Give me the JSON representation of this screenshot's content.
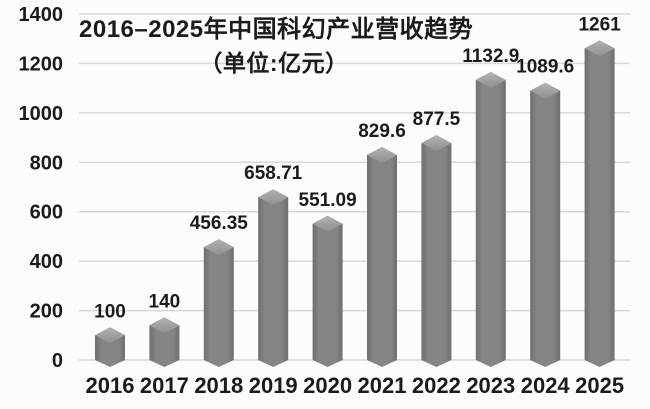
{
  "chart_data": {
    "type": "bar",
    "variant": "3d-box",
    "title": "2016–2025年中国科幻产业营收趋势",
    "subtitle": "（单位:亿元）",
    "categories": [
      "2016",
      "2017",
      "2018",
      "2019",
      "2020",
      "2021",
      "2022",
      "2023",
      "2024",
      "2025"
    ],
    "values": [
      100,
      140,
      456.35,
      658.71,
      551.09,
      829.6,
      877.5,
      1132.9,
      1089.6,
      1261
    ],
    "value_labels": [
      "100",
      "140",
      "456.35",
      "658.71",
      "551.09",
      "829.6",
      "877.5",
      "1132.9",
      "1089.6",
      "1261"
    ],
    "xlabel": "",
    "ylabel": "",
    "ylim": [
      0,
      1400
    ],
    "yticks": [
      0,
      200,
      400,
      600,
      800,
      1000,
      1200,
      1400
    ],
    "grid": true,
    "legend": false,
    "colors": {
      "background": "#fcfcfc",
      "gridline": "#d8d8d8",
      "text": "#1b1b1b",
      "bar_body": "#858585",
      "bar_body_edge": "#6e6e6e",
      "bar_top": "#b2b2b2",
      "bar_top_shade": "#8f8f8f"
    }
  }
}
